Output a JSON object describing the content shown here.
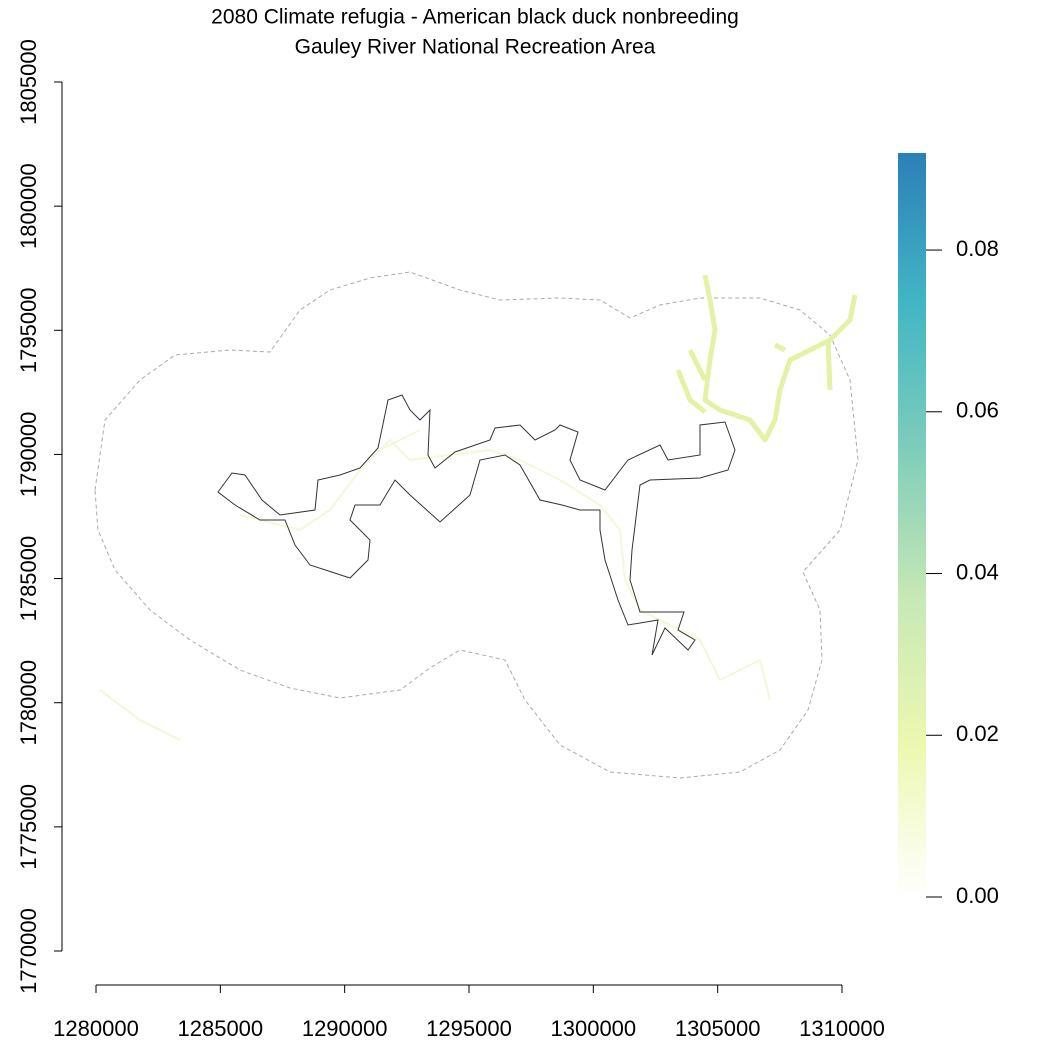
{
  "chart_data": {
    "type": "raster-map",
    "title": "2080 Climate refugia - American black duck nonbreeding",
    "subtitle": "Gauley River National Recreation Area",
    "xlim": [
      1280000,
      1310000
    ],
    "xticks": [
      1280000,
      1285000,
      1290000,
      1295000,
      1300000,
      1305000,
      1310000
    ],
    "ylim": [
      1770000,
      1805000
    ],
    "yticks": [
      1770000,
      1775000,
      1780000,
      1785000,
      1790000,
      1795000,
      1800000,
      1805000
    ],
    "colorbar": {
      "lim": [
        0,
        0.092
      ],
      "ticks": [
        {
          "value": 0,
          "label": "0.00"
        },
        {
          "value": 0.02,
          "label": "0.02"
        },
        {
          "value": 0.04,
          "label": "0.04"
        },
        {
          "value": 0.06,
          "label": "0.06"
        },
        {
          "value": 0.08,
          "label": "0.08"
        }
      ],
      "colors": [
        "#ffffff",
        "#edf8b1",
        "#c7e9b4",
        "#7fcdbb",
        "#41b6c4",
        "#2c7fb8"
      ]
    }
  }
}
